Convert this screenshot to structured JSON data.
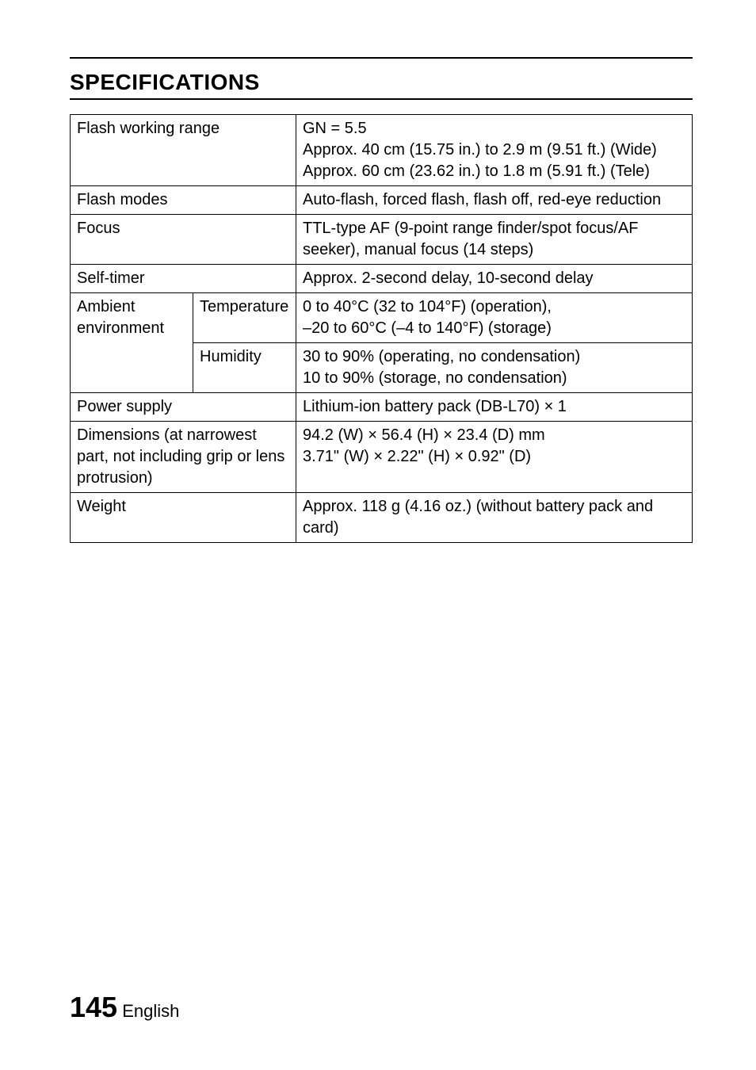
{
  "heading": "SPECIFICATIONS",
  "table": {
    "flash_working_range": {
      "label": "Flash working range",
      "value": "GN = 5.5\nApprox. 40 cm (15.75 in.) to 2.9 m (9.51 ft.) (Wide)\nApprox. 60 cm (23.62 in.) to 1.8 m (5.91 ft.) (Tele)"
    },
    "flash_modes": {
      "label": "Flash modes",
      "value": "Auto-flash, forced flash, flash off, red-eye reduction"
    },
    "focus": {
      "label": "Focus",
      "value": "TTL-type AF (9-point range finder/spot focus/AF seeker), manual focus (14 steps)"
    },
    "self_timer": {
      "label": "Self-timer",
      "value": "Approx. 2-second delay, 10-second delay"
    },
    "ambient": {
      "label": "Ambient environment",
      "temperature": {
        "label": "Temperature",
        "value": "0 to 40°C (32 to 104°F) (operation),\n–20 to 60°C (–4 to 140°F) (storage)"
      },
      "humidity": {
        "label": "Humidity",
        "value": "30 to 90% (operating, no condensation)\n10 to 90% (storage, no condensation)"
      }
    },
    "power_supply": {
      "label": "Power supply",
      "value": "Lithium-ion battery pack (DB-L70) × 1"
    },
    "dimensions": {
      "label": "Dimensions (at narrowest part, not including grip or lens protrusion)",
      "value": "94.2 (W) × 56.4 (H) × 23.4 (D) mm\n3.71\" (W) × 2.22\" (H) × 0.92\" (D)"
    },
    "weight": {
      "label": "Weight",
      "value": "Approx. 118 g (4.16 oz.) (without battery pack and card)"
    }
  },
  "page_number": "145",
  "page_lang": "English"
}
